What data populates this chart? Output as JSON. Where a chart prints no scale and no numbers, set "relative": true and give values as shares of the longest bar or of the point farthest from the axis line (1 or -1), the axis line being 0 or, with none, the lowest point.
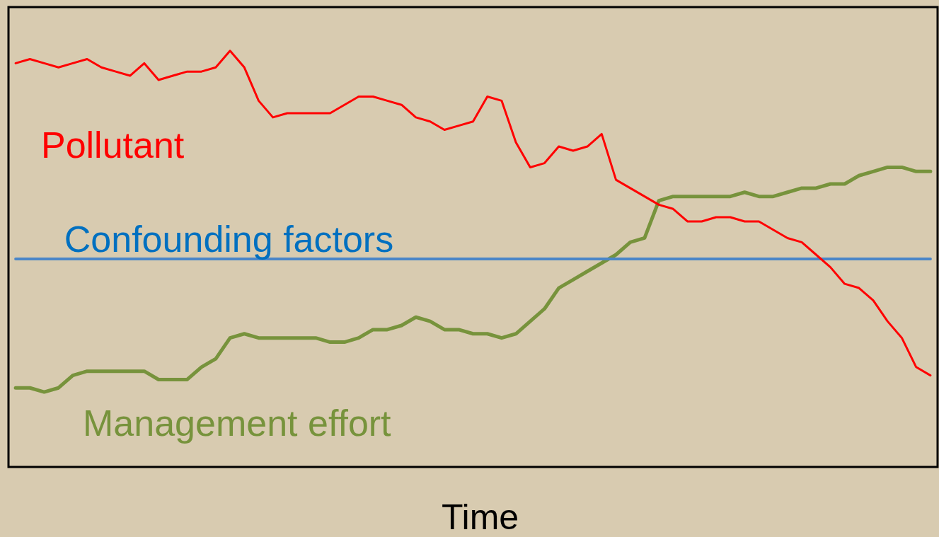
{
  "chart_data": {
    "type": "line",
    "relative": true,
    "xlabel": "Time",
    "legend": false,
    "grid": false,
    "tick_labels": false,
    "marker": "none",
    "line_style": "solid",
    "categories": [
      null,
      null,
      null,
      null,
      null,
      null,
      null,
      null,
      null,
      null,
      null,
      null,
      null,
      null,
      null,
      null,
      null,
      null,
      null,
      null,
      null,
      null,
      null,
      null,
      null,
      null,
      null,
      null,
      null,
      null,
      null,
      null,
      null,
      null,
      null,
      null,
      null,
      null,
      null,
      null,
      null,
      null,
      null,
      null,
      null,
      null,
      null,
      null,
      null,
      null,
      null,
      null,
      null,
      null,
      null,
      null,
      null,
      null,
      null,
      null,
      null,
      null,
      null,
      null,
      null
    ],
    "series": [
      {
        "name": "Pollutant",
        "color": "#ff0000",
        "values": [
          0.97,
          0.98,
          0.97,
          0.96,
          0.97,
          0.98,
          0.96,
          0.95,
          0.94,
          0.97,
          0.93,
          0.94,
          0.95,
          0.95,
          0.96,
          1,
          0.96,
          0.88,
          0.84,
          0.85,
          0.85,
          0.85,
          0.85,
          0.87,
          0.89,
          0.89,
          0.88,
          0.87,
          0.84,
          0.83,
          0.81,
          0.82,
          0.83,
          0.89,
          0.88,
          0.78,
          0.72,
          0.73,
          0.77,
          0.76,
          0.77,
          0.8,
          0.69,
          0.67,
          0.65,
          0.63,
          0.62,
          0.59,
          0.59,
          0.6,
          0.6,
          0.59,
          0.59,
          0.57,
          0.55,
          0.54,
          0.51,
          0.48,
          0.44,
          0.43,
          0.4,
          0.35,
          0.31,
          0.24,
          0.22
        ]
      },
      {
        "name": "Confounding factors",
        "color": "#4a86c8",
        "values": [
          0.5,
          0.5,
          0.5,
          0.5,
          0.5,
          0.5,
          0.5,
          0.5,
          0.5,
          0.5,
          0.5,
          0.5,
          0.5,
          0.5,
          0.5,
          0.5,
          0.5,
          0.5,
          0.5,
          0.5,
          0.5,
          0.5,
          0.5,
          0.5,
          0.5,
          0.5,
          0.5,
          0.5,
          0.5,
          0.5,
          0.5,
          0.5,
          0.5,
          0.5,
          0.5,
          0.5,
          0.5,
          0.5,
          0.5,
          0.5,
          0.5,
          0.5,
          0.5,
          0.5,
          0.5,
          0.5,
          0.5,
          0.5,
          0.5,
          0.5,
          0.5,
          0.5,
          0.5,
          0.5,
          0.5,
          0.5,
          0.5,
          0.5,
          0.5,
          0.5,
          0.5,
          0.5,
          0.5,
          0.5,
          0.5
        ]
      },
      {
        "name": "Management effort",
        "color": "#77933c",
        "values": [
          0.19,
          0.19,
          0.18,
          0.19,
          0.22,
          0.23,
          0.23,
          0.23,
          0.23,
          0.23,
          0.21,
          0.21,
          0.21,
          0.24,
          0.26,
          0.31,
          0.32,
          0.31,
          0.31,
          0.31,
          0.31,
          0.31,
          0.3,
          0.3,
          0.31,
          0.33,
          0.33,
          0.34,
          0.36,
          0.35,
          0.33,
          0.33,
          0.32,
          0.32,
          0.31,
          0.32,
          0.35,
          0.38,
          0.43,
          0.45,
          0.47,
          0.49,
          0.51,
          0.54,
          0.55,
          0.64,
          0.65,
          0.65,
          0.65,
          0.65,
          0.65,
          0.66,
          0.65,
          0.65,
          0.66,
          0.67,
          0.67,
          0.68,
          0.68,
          0.7,
          0.71,
          0.72,
          0.72,
          0.71,
          0.71
        ]
      }
    ]
  }
}
